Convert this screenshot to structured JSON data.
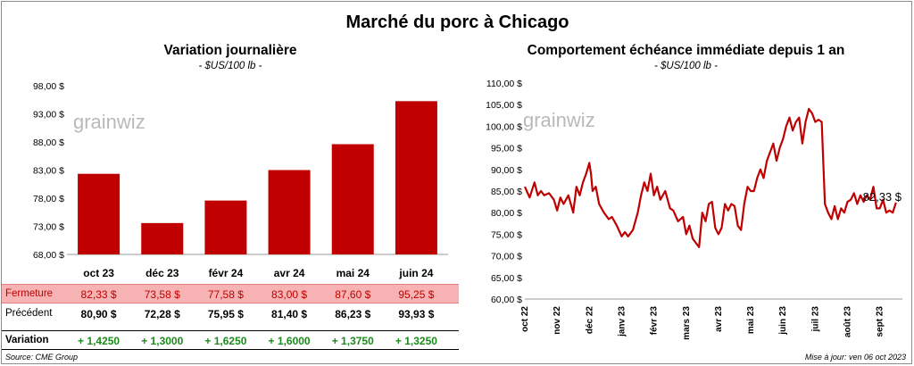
{
  "title": "Marché du porc à Chicago",
  "watermark": "grainwiz",
  "colors": {
    "bar": "#c00000",
    "line": "#c00000",
    "close_row": "#f7b3b3",
    "variation": "#1a8a1a"
  },
  "table": {
    "row_labels": {
      "close": "Fermeture",
      "previous": "Précédent",
      "variation": "Variation"
    },
    "close": [
      "82,33  $",
      "73,58  $",
      "77,58  $",
      "83,00  $",
      "87,60  $",
      "95,25  $"
    ],
    "previous": [
      "80,90  $",
      "72,28  $",
      "75,95  $",
      "81,40  $",
      "86,23  $",
      "93,93  $"
    ],
    "variation": [
      "+ 1,4250",
      "+ 1,3000",
      "+ 1,6250",
      "+ 1,6000",
      "+ 1,3750",
      "+ 1,3250"
    ]
  },
  "footer": {
    "source": "Source: CME Group",
    "updated": "Mise à jour: ven 06 oct 2023"
  },
  "chart_data": [
    {
      "type": "bar",
      "title": "Variation  journalière",
      "subtitle": "- $US/100 lb -",
      "categories": [
        "oct 23",
        "déc 23",
        "févr 24",
        "avr 24",
        "mai 24",
        "juin 24"
      ],
      "values": [
        82.33,
        73.58,
        77.58,
        83.0,
        87.6,
        95.25
      ],
      "ylim": [
        68,
        98
      ],
      "yticks": [
        68,
        73,
        78,
        83,
        88,
        93,
        98
      ],
      "ytick_labels": [
        "68,00 $",
        "73,00 $",
        "78,00 $",
        "83,00 $",
        "88,00 $",
        "93,00 $",
        "98,00 $"
      ],
      "grid": false
    },
    {
      "type": "line",
      "title": "Comportement  échéance immédiate depuis 1 an",
      "subtitle": "- $US/100 lb -",
      "ylim": [
        60,
        110
      ],
      "yticks": [
        60,
        65,
        70,
        75,
        80,
        85,
        90,
        95,
        100,
        105,
        110
      ],
      "ytick_labels": [
        "60,00 $",
        "65,00 $",
        "70,00 $",
        "75,00 $",
        "80,00 $",
        "85,00 $",
        "90,00 $",
        "95,00 $",
        "100,00 $",
        "105,00 $",
        "110,00 $"
      ],
      "xticks": [
        "oct 22",
        "nov 22",
        "déc 22",
        "janv 23",
        "févr 23",
        "mars 23",
        "avr 23",
        "mai 23",
        "juin 23",
        "juil 23",
        "août 23",
        "sept 23"
      ],
      "last_value_label": "82,33 $",
      "grid": false,
      "series": [
        {
          "x": [
            0,
            0.15,
            0.3,
            0.4,
            0.5,
            0.6,
            0.75,
            0.9,
            1.0,
            1.1,
            1.2,
            1.35,
            1.5,
            1.6,
            1.7,
            1.8,
            1.9,
            2.0,
            2.05,
            2.1,
            2.2,
            2.3,
            2.45,
            2.6,
            2.7,
            2.85,
            3.0,
            3.1,
            3.2,
            3.35,
            3.5,
            3.6,
            3.7,
            3.8,
            3.9,
            4.0,
            4.1,
            4.2,
            4.35,
            4.5,
            4.6,
            4.75,
            4.9,
            5.0,
            5.1,
            5.2,
            5.3,
            5.4,
            5.5,
            5.6,
            5.7,
            5.8,
            5.9,
            6.0,
            6.1,
            6.2,
            6.3,
            6.4,
            6.5,
            6.6,
            6.7,
            6.8,
            6.9,
            7.0,
            7.1,
            7.2,
            7.3,
            7.4,
            7.5,
            7.6,
            7.7,
            7.8,
            7.9,
            8.0,
            8.1,
            8.2,
            8.3,
            8.4,
            8.5,
            8.6,
            8.7,
            8.8,
            8.9,
            9.0,
            9.1,
            9.2,
            9.3,
            9.4,
            9.5,
            9.55,
            9.6,
            9.7,
            9.8,
            9.9,
            10.0,
            10.1,
            10.2,
            10.3,
            10.4,
            10.5,
            10.6,
            10.7,
            10.8,
            10.9,
            11.0,
            11.1,
            11.2,
            11.3,
            11.4,
            11.5
          ],
          "y": [
            86,
            83.5,
            87,
            84,
            85,
            84,
            84.5,
            83,
            80.5,
            83.5,
            82,
            84,
            80,
            86,
            84,
            87,
            89,
            91.5,
            89,
            85,
            86,
            82,
            80,
            78.5,
            79,
            77,
            74.5,
            75.5,
            74.5,
            76,
            80,
            84,
            87,
            85,
            89,
            84,
            86,
            83,
            85,
            81,
            80.5,
            78,
            79,
            75,
            77,
            74,
            73,
            72,
            80,
            78,
            82,
            82.5,
            76.5,
            75,
            76.5,
            82,
            80.5,
            82,
            81.5,
            77,
            76,
            82,
            86,
            85,
            85,
            88,
            90,
            88,
            92,
            94,
            96,
            92,
            95,
            97,
            100,
            102,
            99,
            101,
            102,
            96,
            101,
            104,
            103,
            101,
            101.5,
            101,
            82,
            80,
            78.5,
            80,
            81.5,
            78.5,
            81,
            80,
            82.5,
            83,
            84.5,
            82,
            84,
            82.5,
            84,
            83,
            86,
            81,
            81,
            83,
            80,
            80.5,
            80,
            82.33
          ]
        }
      ]
    }
  ]
}
